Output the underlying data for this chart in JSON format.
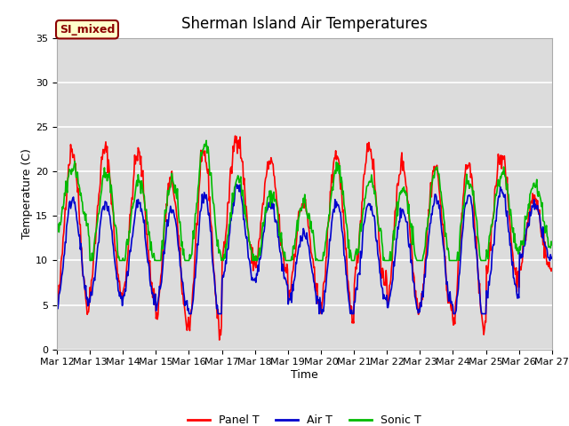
{
  "title": "Sherman Island Air Temperatures",
  "xlabel": "Time",
  "ylabel": "Temperature (C)",
  "ylim": [
    0,
    35
  ],
  "yticks": [
    0,
    5,
    10,
    15,
    20,
    25,
    30,
    35
  ],
  "x_tick_labels": [
    "Mar 12",
    "Mar 13",
    "Mar 14",
    "Mar 15",
    "Mar 16",
    "Mar 17",
    "Mar 18",
    "Mar 19",
    "Mar 20",
    "Mar 21",
    "Mar 22",
    "Mar 23",
    "Mar 24",
    "Mar 25",
    "Mar 26",
    "Mar 27"
  ],
  "annotation_text": "SI_mixed",
  "annotation_color": "#8B0000",
  "annotation_bg": "#FFFFCC",
  "bg_color": "#DCDCDC",
  "fig_bg": "#FFFFFF",
  "line_colors": {
    "panel": "#FF0000",
    "air": "#0000CD",
    "sonic": "#00BB00"
  },
  "legend_labels": [
    "Panel T",
    "Air T",
    "Sonic T"
  ],
  "title_fontsize": 12,
  "axis_fontsize": 9,
  "tick_fontsize": 8,
  "n_days": 15,
  "panel_base": [
    13.5,
    14.5,
    14,
    11,
    12,
    17,
    15,
    11,
    13,
    15,
    13,
    12.5,
    11.5,
    15,
    13
  ],
  "panel_amp": [
    9,
    8,
    8,
    8,
    10,
    7,
    6,
    5.5,
    9,
    8,
    8,
    8,
    9.5,
    7,
    4
  ],
  "air_base": [
    11,
    11,
    11,
    10,
    10,
    13,
    12,
    9,
    10,
    11,
    10,
    11,
    10,
    12,
    13
  ],
  "air_amp": [
    6,
    5.5,
    5.5,
    5.5,
    7.5,
    5.5,
    4.5,
    4,
    6.5,
    5.5,
    5.5,
    6,
    7.5,
    6,
    3
  ],
  "sonic_base": [
    17,
    14.5,
    14.5,
    13.5,
    16.5,
    14.5,
    13.5,
    13,
    15,
    14.5,
    13.5,
    14.5,
    13.5,
    15.5,
    15
  ],
  "sonic_amp": [
    3.5,
    5.5,
    4.5,
    5.5,
    6.5,
    4.5,
    4,
    3.5,
    5.5,
    4.5,
    4.5,
    5.5,
    5.5,
    4.5,
    3.5
  ],
  "panel_phase": 0.25,
  "air_phase": 0.15,
  "sonic_phase": 0.05,
  "noise_seed": 42
}
